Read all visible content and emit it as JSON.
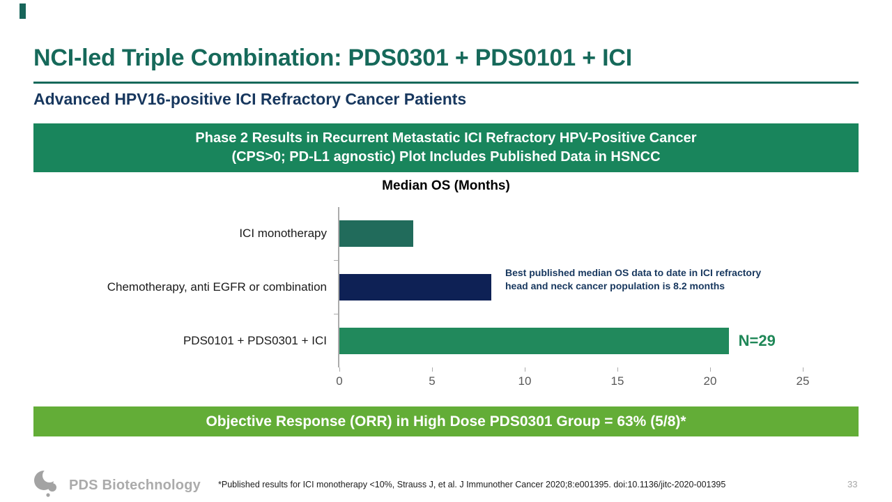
{
  "slide": {
    "title": "NCI-led Triple Combination: PDS0301 + PDS0101 + ICI",
    "subtitle": "Advanced HPV16-positive ICI Refractory Cancer Patients",
    "page_number": "33"
  },
  "banners": {
    "top": {
      "line1": "Phase 2 Results in Recurrent Metastatic ICI Refractory HPV-Positive Cancer",
      "line2": "(CPS>0; PD-L1 agnostic) Plot Includes Published Data in HSNCC",
      "bg": "#19855c"
    },
    "bottom": {
      "text": "Objective Response (ORR) in High Dose PDS0301 Group = 63% (5/8)*",
      "bg": "#63ad37"
    }
  },
  "chart_data": {
    "type": "bar",
    "orientation": "horizontal",
    "title": "Median OS (Months)",
    "categories": [
      "ICI monotherapy",
      "Chemotherapy, anti EGFR or combination",
      "PDS0101 + PDS0301 + ICI"
    ],
    "values": [
      4,
      8.2,
      21
    ],
    "units": "months",
    "bar_colors": [
      "#216b5b",
      "#0e2155",
      "#21895c"
    ],
    "xlim": [
      0,
      25
    ],
    "xticks": [
      0,
      5,
      10,
      15,
      20,
      25
    ],
    "grid": false,
    "legend": false,
    "annotation": {
      "lines": [
        "Best published median OS data to date in ICI refractory",
        "head and neck cancer population is 8.2 months"
      ],
      "color": "#17375e"
    },
    "bar_label": {
      "text": "N=29",
      "bar_index": 2,
      "color": "#1f8757"
    }
  },
  "footer": {
    "logo_text": "PDS Biotechnology",
    "footnote": "*Published results for ICI monotherapy <10%, Strauss J, et al. J Immunother Cancer 2020;8:e001395. doi:10.1136/jitc-2020-001395"
  },
  "colors": {
    "title": "#16695a",
    "title_rule": "#16695a",
    "subtitle": "#17375e",
    "axis_line": "#ababab",
    "tick_label": "#595959",
    "logo_gray": "#ababab",
    "page_number_gray": "#a6a6a6"
  }
}
